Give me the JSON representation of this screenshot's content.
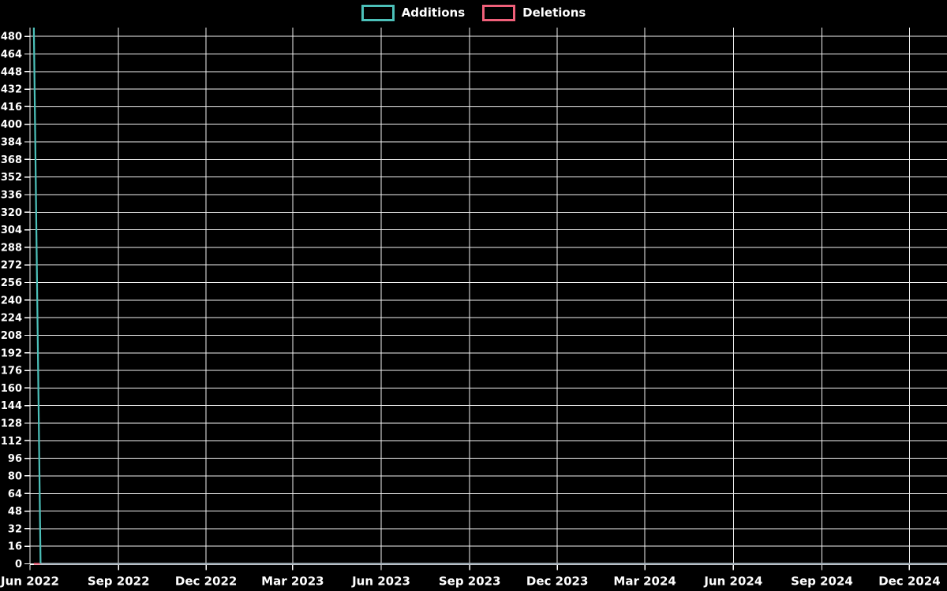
{
  "page": {
    "background": "#000000",
    "text_color": "#ffffff",
    "gridline_color": "#f2f2f2"
  },
  "legend": {
    "position": "top-center",
    "items": [
      {
        "label": "Additions",
        "color": "#4cc0b9"
      },
      {
        "label": "Deletions",
        "color": "#f0607a"
      }
    ]
  },
  "chart_data": {
    "type": "line",
    "title": "",
    "xlabel": "",
    "ylabel": "",
    "grid": true,
    "legend_position": "top-center",
    "x_axis": {
      "start_date": "2022-06-01",
      "end_date": "2025-01-09",
      "total_days": 953,
      "ticks": [
        {
          "label": "Jun 2022",
          "day": 0
        },
        {
          "label": "Sep 2022",
          "day": 92
        },
        {
          "label": "Dec 2022",
          "day": 183
        },
        {
          "label": "Mar 2023",
          "day": 273
        },
        {
          "label": "Jun 2023",
          "day": 365
        },
        {
          "label": "Sep 2023",
          "day": 457
        },
        {
          "label": "Dec 2023",
          "day": 548
        },
        {
          "label": "Mar 2024",
          "day": 639
        },
        {
          "label": "Jun 2024",
          "day": 731
        },
        {
          "label": "Sep 2024",
          "day": 823
        },
        {
          "label": "Dec 2024",
          "day": 914
        }
      ]
    },
    "y_axis": {
      "range": [
        0,
        488
      ],
      "tick_values": [
        0,
        16,
        32,
        48,
        64,
        80,
        96,
        112,
        128,
        144,
        160,
        176,
        192,
        208,
        224,
        240,
        256,
        272,
        288,
        304,
        320,
        336,
        352,
        368,
        384,
        400,
        416,
        432,
        448,
        464,
        480
      ]
    },
    "series": [
      {
        "name": "Deletions",
        "color": "#f0607a",
        "points": [
          {
            "date": "2022-06-05",
            "day": 4,
            "value": 0
          },
          {
            "date": "2025-01-09",
            "day": 953,
            "value": 0
          }
        ]
      },
      {
        "name": "Additions",
        "color": "#4cc0b9",
        "zero_baseline_blend_color": "#9db5bd",
        "segment_colors": [
          "#4cc0b9",
          "#9db5bd"
        ],
        "points": [
          {
            "date": "2022-06-05",
            "day": 4,
            "value": 488
          },
          {
            "date": "2022-06-12",
            "day": 11,
            "value": 0
          },
          {
            "date": "2025-01-09",
            "day": 953,
            "value": 0
          }
        ]
      }
    ],
    "annotations": {
      "peak": {
        "series": "Additions",
        "date": "2022-06-05",
        "value": 488
      }
    }
  }
}
